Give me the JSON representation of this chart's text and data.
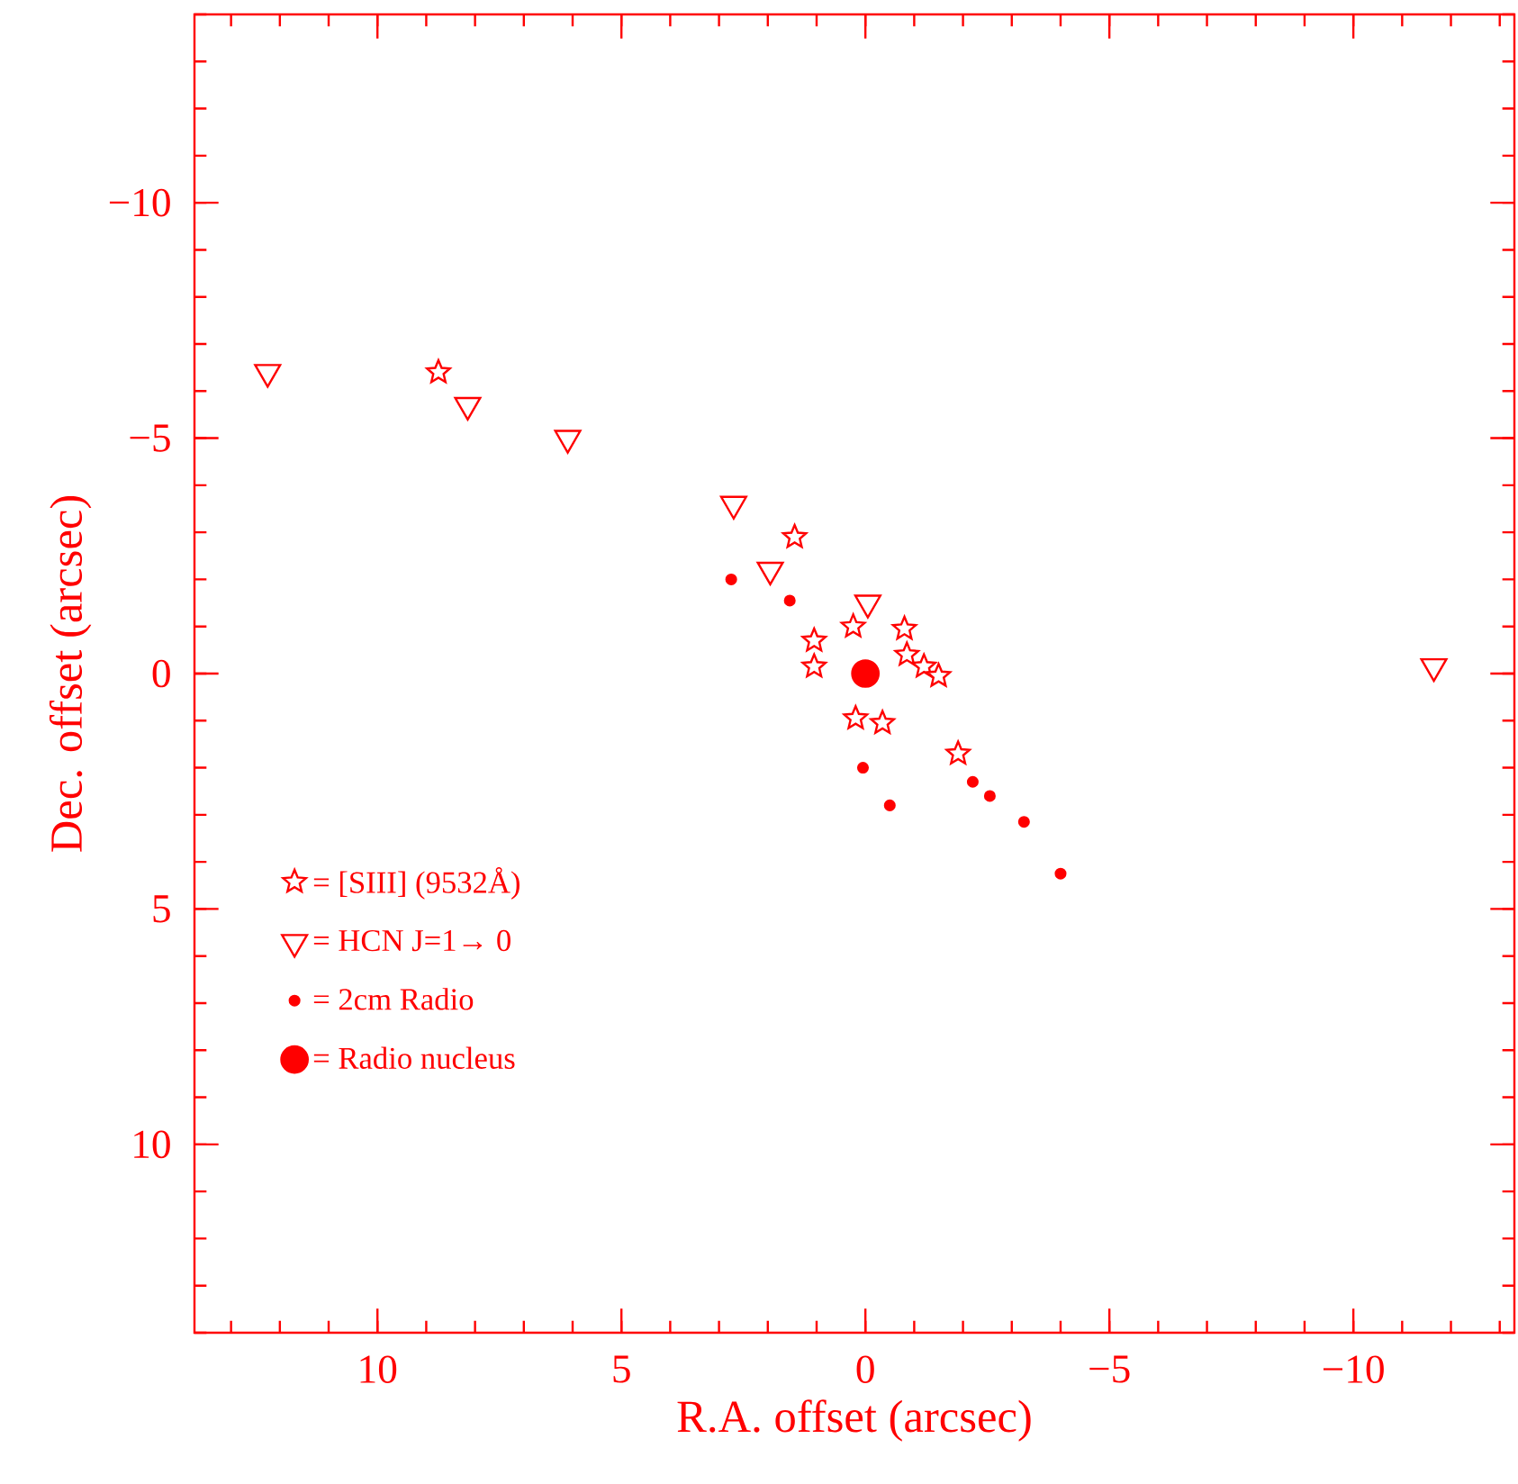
{
  "chart_data": {
    "type": "scatter",
    "xlabel": "R.A. offset (arcsec)",
    "ylabel": "Dec. offset (arcsec)",
    "xlim": [
      13.75,
      -13.3
    ],
    "ylim": [
      14,
      -14
    ],
    "xticks": [
      10,
      5,
      0,
      {
        "value": -5,
        "label": "−5"
      },
      {
        "value": -10,
        "label": "−10"
      }
    ],
    "yticks": [
      {
        "value": -10,
        "label": "−10"
      },
      {
        "value": -5,
        "label": "−5"
      },
      0,
      5,
      10
    ],
    "grid": false,
    "legend": "bottom left",
    "series": [
      {
        "name": "= [SIII] (9532Å)",
        "color": "#ff0000",
        "marker": "star",
        "x": [
          8.75,
          1.45,
          0.25,
          1.05,
          1.05,
          -0.8,
          -0.85,
          -1.2,
          -1.5,
          0.2,
          -0.35,
          -1.9
        ],
        "values": [
          -6.4,
          -2.9,
          -1.0,
          -0.7,
          -0.15,
          -0.95,
          -0.4,
          -0.15,
          0.05,
          0.95,
          1.05,
          1.7
        ]
      },
      {
        "name": "= HCN J=1→ 0",
        "color": "#ff0000",
        "marker": "triangle",
        "x": [
          12.25,
          8.15,
          6.1,
          2.7,
          1.95,
          -0.05,
          -11.65
        ],
        "values": [
          -6.4,
          -5.7,
          -5.0,
          -3.6,
          -2.2,
          -1.5,
          -0.15
        ]
      },
      {
        "name": "= 2cm Radio",
        "color": "#ff0000",
        "marker": "circle",
        "x": [
          2.75,
          1.55,
          0.05,
          -0.5,
          -2.2,
          -2.55,
          -3.25,
          -4.0
        ],
        "values": [
          -2.0,
          -1.55,
          2.0,
          2.8,
          2.3,
          2.6,
          3.15,
          4.25
        ]
      },
      {
        "name": "= Radio nucleus",
        "color": "#ff0000",
        "marker": "circle",
        "x": [
          0
        ],
        "values": [
          0
        ]
      }
    ]
  }
}
